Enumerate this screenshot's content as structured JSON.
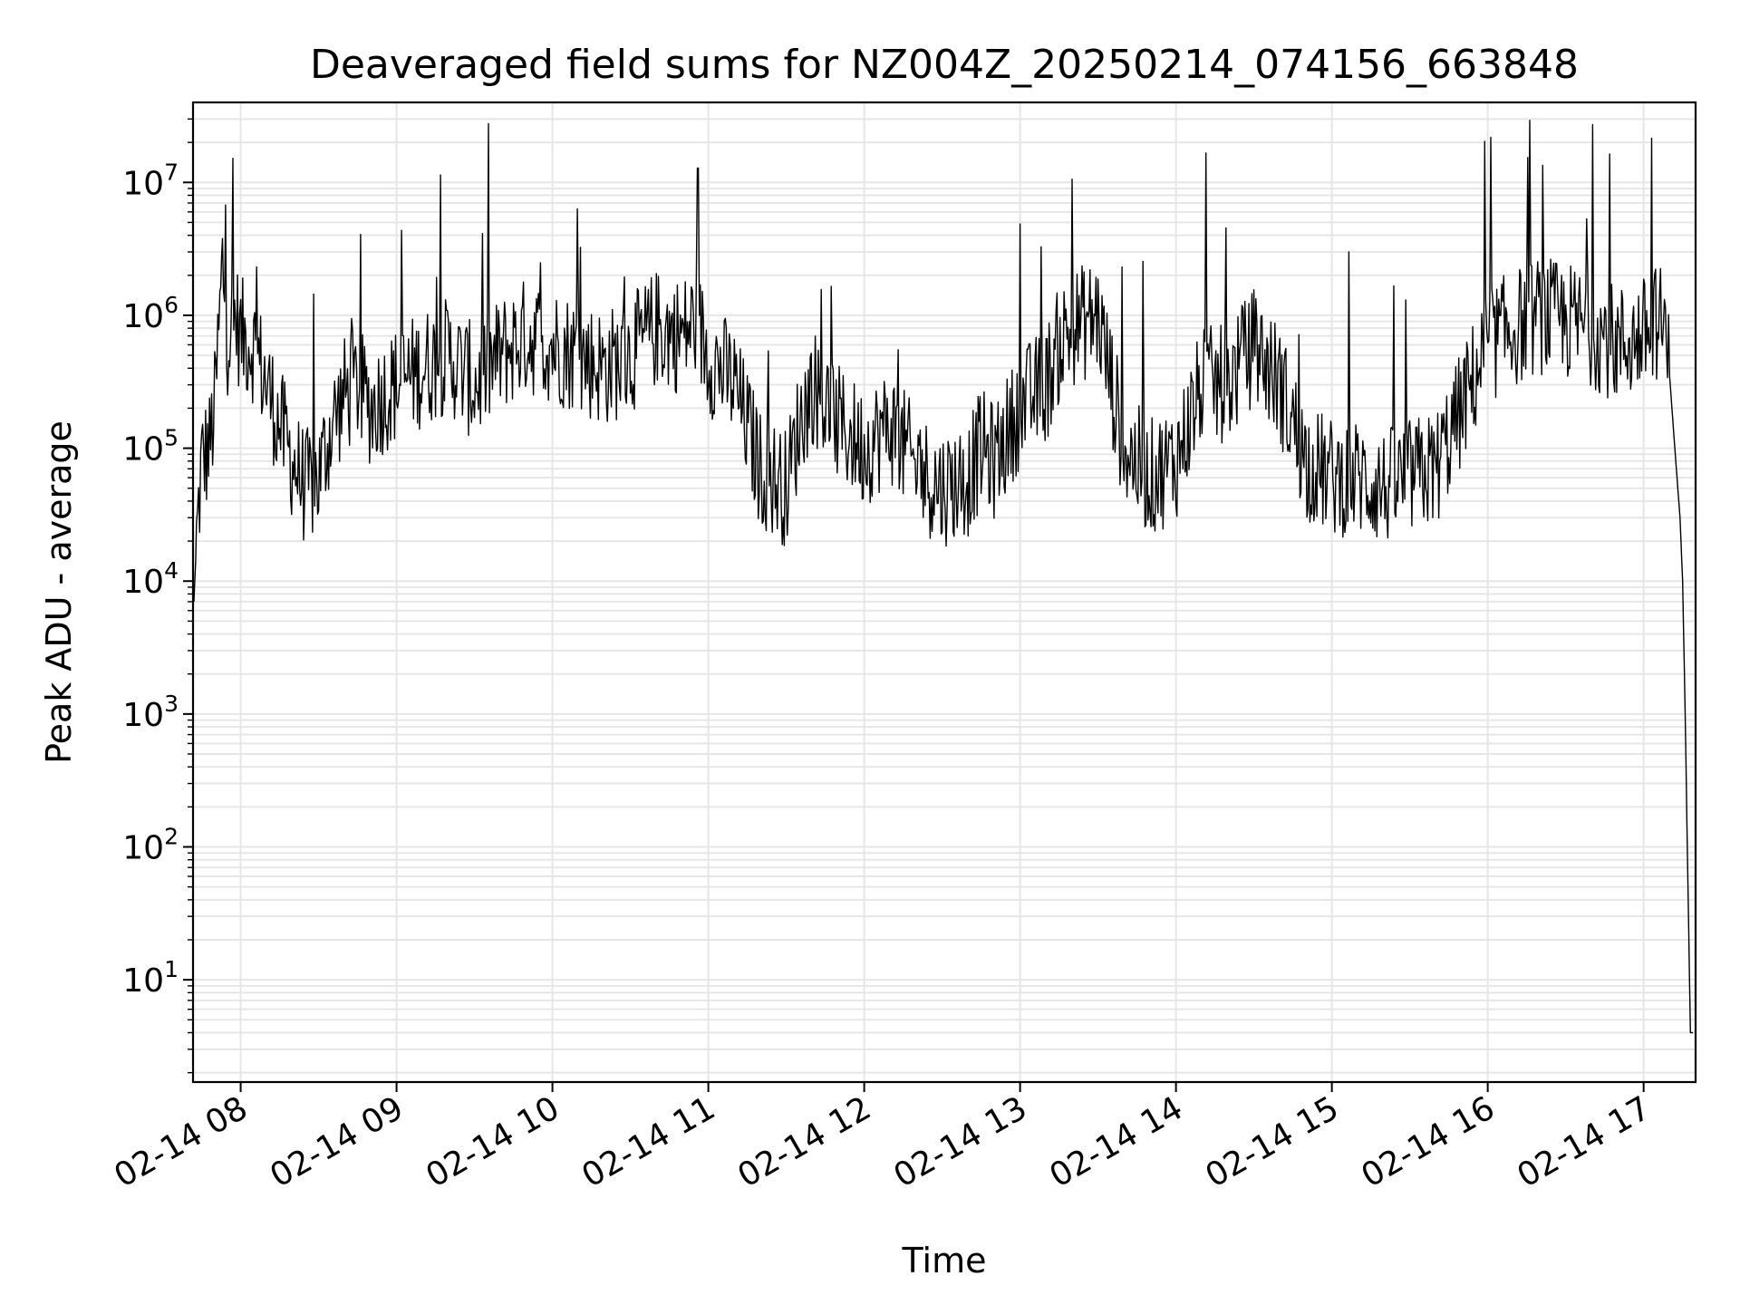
{
  "chart_data": {
    "type": "line",
    "title": "Deaveraged field sums for NZ004Z_20250214_074156_663848",
    "xlabel": "Time",
    "ylabel": "Peak ADU - average",
    "yscale": "log",
    "ylim": [
      1.7,
      40000000
    ],
    "xlim": [
      "02-14 07:41:40",
      "02-14 17:20:00"
    ],
    "grid": "both (major and minor)",
    "legend": "none",
    "line_color": "#000000",
    "grid_color": "#e6e6e6",
    "x_ticks": [
      {
        "time": "02-14 08:00",
        "label": "02-14 08"
      },
      {
        "time": "02-14 09:00",
        "label": "02-14 09"
      },
      {
        "time": "02-14 10:00",
        "label": "02-14 10"
      },
      {
        "time": "02-14 11:00",
        "label": "02-14 11"
      },
      {
        "time": "02-14 12:00",
        "label": "02-14 12"
      },
      {
        "time": "02-14 13:00",
        "label": "02-14 13"
      },
      {
        "time": "02-14 14:00",
        "label": "02-14 14"
      },
      {
        "time": "02-14 15:00",
        "label": "02-14 15"
      },
      {
        "time": "02-14 16:00",
        "label": "02-14 16"
      },
      {
        "time": "02-14 17:00",
        "label": "02-14 17"
      }
    ],
    "y_ticks": [
      {
        "value": 10,
        "base": "10",
        "exp": "1"
      },
      {
        "value": 100,
        "base": "10",
        "exp": "2"
      },
      {
        "value": 1000,
        "base": "10",
        "exp": "3"
      },
      {
        "value": 10000,
        "base": "10",
        "exp": "4"
      },
      {
        "value": 100000,
        "base": "10",
        "exp": "5"
      },
      {
        "value": 1000000,
        "base": "10",
        "exp": "6"
      },
      {
        "value": 10000000,
        "base": "10",
        "exp": "7"
      }
    ],
    "series": [
      {
        "x": [
          "07:42",
          "07:43",
          "07:45",
          "07:48",
          "07:50",
          "07:52",
          "07:53",
          "07:55",
          "07:57",
          "07:58",
          "08:00",
          "08:05",
          "08:10",
          "08:15",
          "08:20",
          "08:25",
          "08:30",
          "08:35",
          "08:40",
          "08:45",
          "08:50",
          "08:55",
          "09:00",
          "09:10",
          "09:20",
          "09:30",
          "09:40",
          "09:45",
          "09:50",
          "10:00",
          "10:10",
          "10:20",
          "10:30",
          "10:40",
          "10:50",
          "10:55",
          "11:00",
          "11:10",
          "11:20",
          "11:30",
          "11:35",
          "11:40",
          "11:50",
          "12:00",
          "12:10",
          "12:20",
          "12:30",
          "12:40",
          "12:45",
          "12:50",
          "13:00",
          "13:10",
          "13:15",
          "13:20",
          "13:30",
          "13:40",
          "13:50",
          "14:00",
          "14:10",
          "14:20",
          "14:30",
          "14:40",
          "14:50",
          "15:00",
          "15:10",
          "15:20",
          "15:30",
          "15:40",
          "15:50",
          "16:00",
          "16:10",
          "16:20",
          "16:30",
          "16:40",
          "16:50",
          "17:00",
          "17:05",
          "17:08",
          "17:10",
          "17:12",
          "17:14",
          "17:15",
          "17:16",
          "17:17",
          "17:18",
          "17:19"
        ],
        "values": [
          7000,
          20000,
          80000,
          100000,
          200000,
          1000000,
          2500000,
          700000,
          800000,
          1000000,
          700000,
          600000,
          300000,
          150000,
          80000,
          50000,
          60000,
          150000,
          250000,
          300000,
          200000,
          250000,
          300000,
          400000,
          500000,
          300000,
          500000,
          600000,
          700000,
          600000,
          500000,
          400000,
          500000,
          800000,
          700000,
          900000,
          500000,
          300000,
          70000,
          50000,
          150000,
          300000,
          150000,
          100000,
          150000,
          70000,
          50000,
          60000,
          100000,
          80000,
          200000,
          300000,
          600000,
          800000,
          1000000,
          100000,
          60000,
          80000,
          300000,
          300000,
          600000,
          300000,
          80000,
          60000,
          60000,
          50000,
          60000,
          70000,
          200000,
          600000,
          800000,
          1000000,
          900000,
          800000,
          600000,
          700000,
          900000,
          800000,
          350000,
          100000,
          30000,
          10000,
          1000,
          60,
          4,
          4
        ]
      }
    ]
  }
}
